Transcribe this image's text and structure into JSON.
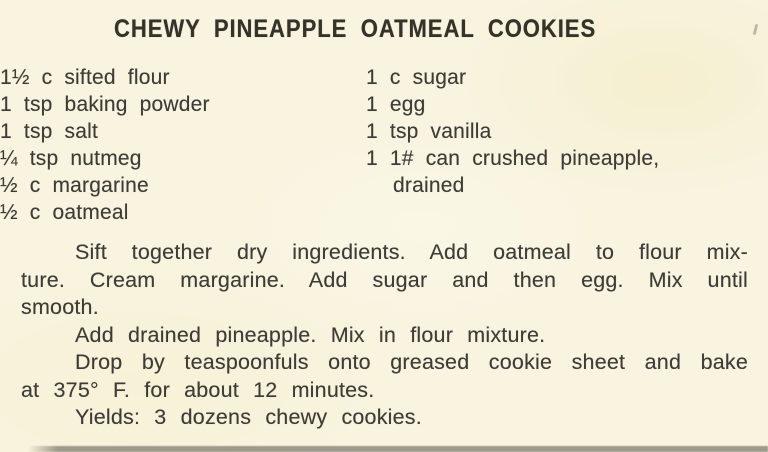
{
  "colors": {
    "paper": "#f8f4e0",
    "ink": "#3e3c37",
    "title_ink": "#343229",
    "edge_shadow": "#55534b"
  },
  "recipe": {
    "title": "CHEWY PINEAPPLE OATMEAL COOKIES",
    "ingredients_left": [
      {
        "text": "1½ c sifted flour",
        "indent": false
      },
      {
        "text": "1 tsp baking powder",
        "indent": false
      },
      {
        "text": "1 tsp salt",
        "indent": false
      },
      {
        "text": "¼ tsp nutmeg",
        "indent": false
      },
      {
        "text": "½ c margarine",
        "indent": false
      },
      {
        "text": "½ c oatmeal",
        "indent": false
      }
    ],
    "ingredients_right": [
      {
        "text": "1 c sugar",
        "indent": false
      },
      {
        "text": "1 egg",
        "indent": false
      },
      {
        "text": "1 tsp vanilla",
        "indent": false
      },
      {
        "text": "1 1# can crushed pineapple,",
        "indent": false
      },
      {
        "text": "drained",
        "indent": true
      }
    ],
    "instruction_lines": [
      {
        "text": "Sift together dry ingredients. Add oatmeal to flour mix-",
        "first": true,
        "justify": true
      },
      {
        "text": "ture. Cream margarine. Add sugar and then egg. Mix until",
        "first": false,
        "justify": true
      },
      {
        "text": "smooth.",
        "first": false,
        "justify": false
      },
      {
        "text": "Add drained pineapple. Mix in flour mixture.",
        "first": true,
        "justify": false
      },
      {
        "text": "Drop by teaspoonfuls onto greased cookie sheet and bake",
        "first": true,
        "justify": true
      },
      {
        "text": "at 375° F. for about 12 minutes.",
        "first": false,
        "justify": false
      },
      {
        "text": "Yields: 3 dozens chewy cookies.",
        "first": true,
        "justify": false
      }
    ]
  }
}
